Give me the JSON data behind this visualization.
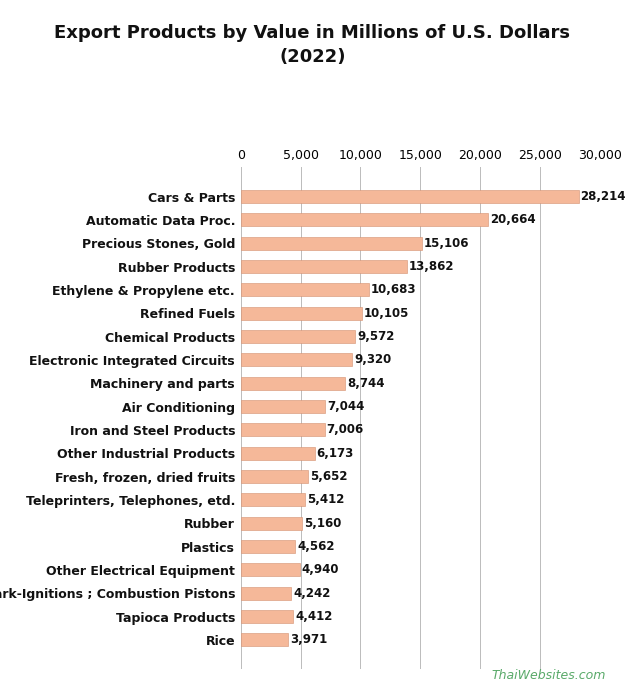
{
  "title": "Export Products by Value in Millions of U.S. Dollars\n(2022)",
  "categories": [
    "Cars & Parts",
    "Automatic Data Proc.",
    "Precious Stones, Gold",
    "Rubber Products",
    "Ethylene & Propylene etc.",
    "Refined Fuels",
    "Chemical Products",
    "Electronic Integrated Circuits",
    "Machinery and parts",
    "Air Conditioning",
    "Iron and Steel Products",
    "Other Industrial Products",
    "Fresh, frozen, dried fruits",
    "Teleprinters, Telephones, etd.",
    "Rubber",
    "Plastics",
    "Other Electrical Equipment",
    "Spark-Ignitions ; Combustion Pistons",
    "Tapioca Products",
    "Rice"
  ],
  "values": [
    28214,
    20664,
    15106,
    13862,
    10683,
    10105,
    9572,
    9320,
    8744,
    7044,
    7006,
    6173,
    5652,
    5412,
    5160,
    4562,
    4940,
    4242,
    4412,
    3971
  ],
  "bar_color": "#f5b899",
  "bar_edgecolor": "#d49070",
  "label_color": "#111111",
  "value_color": "#111111",
  "title_color": "#111111",
  "background_color": "#ffffff",
  "grid_color": "#bbbbbb",
  "watermark_text": "ThaiWebsites.com",
  "watermark_color": "#5aaa6a",
  "xlim": [
    0,
    30000
  ],
  "xticks": [
    0,
    5000,
    10000,
    15000,
    20000,
    25000,
    30000
  ],
  "title_fontsize": 13,
  "label_fontsize": 9,
  "value_fontsize": 8.5
}
